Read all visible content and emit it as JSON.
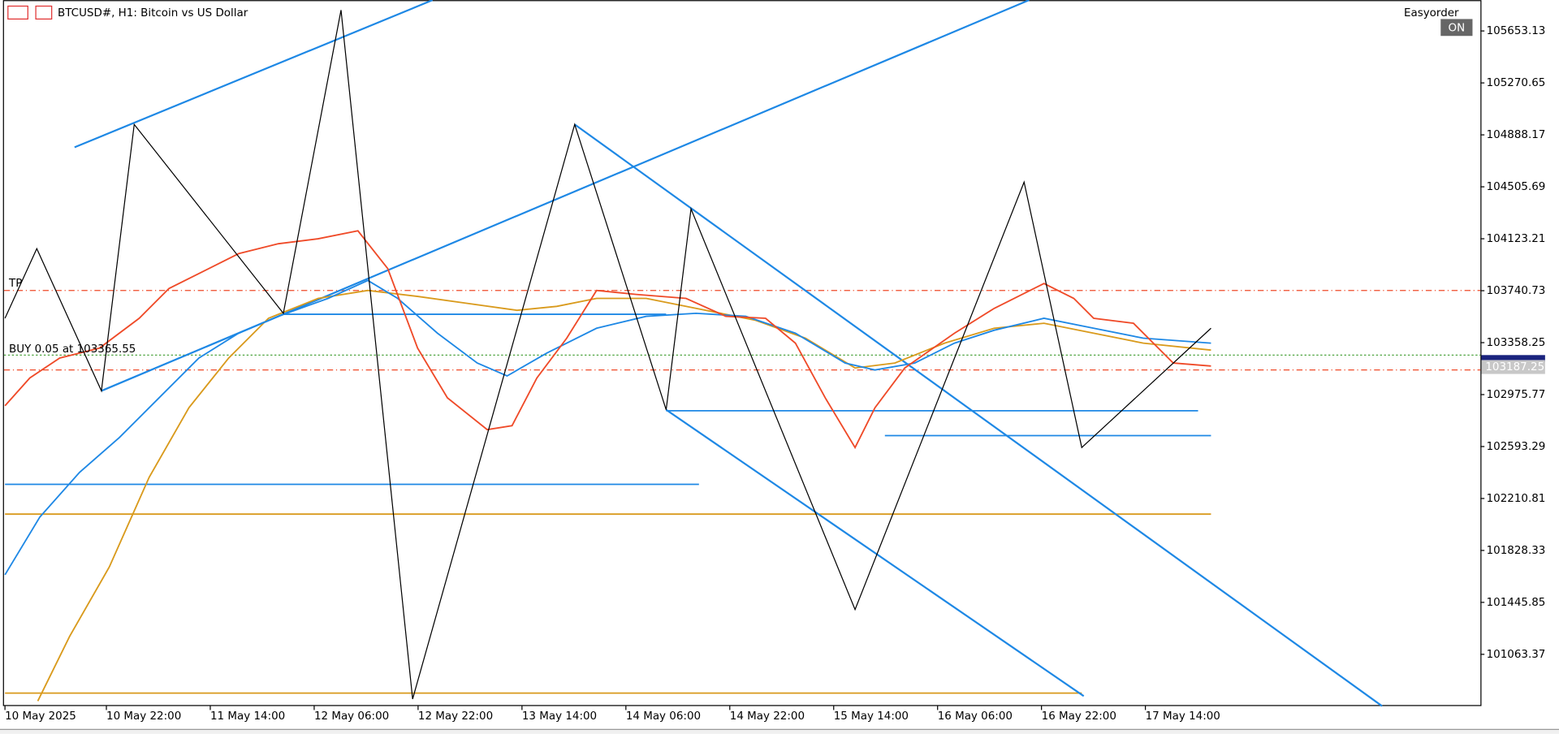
{
  "header": {
    "title": "BTCUSD#, H1:  Bitcoin vs US Dollar",
    "expert": "Easyorder",
    "button": "ON"
  },
  "price_axis": {
    "labels": [
      "105653.13",
      "105270.65",
      "104888.17",
      "104505.69",
      "104123.21",
      "103740.73",
      "103358.25",
      "102975.77",
      "102593.29",
      "102210.81",
      "101828.33",
      "101445.85",
      "101063.37"
    ],
    "current_price": "103187.25"
  },
  "time_axis": {
    "labels": [
      "10 May 2025",
      "10 May 22:00",
      "11 May 14:00",
      "12 May 06:00",
      "12 May 22:00",
      "13 May 14:00",
      "14 May 06:00",
      "14 May 22:00",
      "15 May 14:00",
      "16 May 06:00",
      "16 May 22:00",
      "17 May 14:00"
    ]
  },
  "trade": {
    "tp_label": "TP",
    "order_label": "BUY 0.05 at 103365.55"
  }
}
